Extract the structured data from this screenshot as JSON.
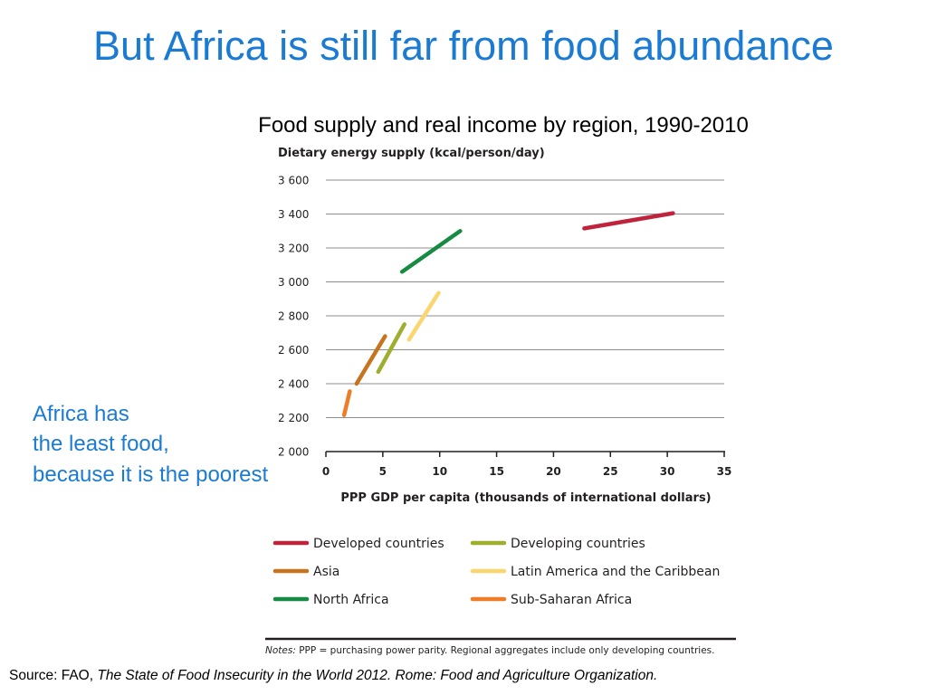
{
  "slide": {
    "title": "But Africa is still far from food abundance",
    "annotation": [
      "Africa has",
      "the least food,",
      "because it is the poorest"
    ],
    "source_prefix": "Source: FAO, ",
    "source_italic": "The State of Food Insecurity in the World 2012.  Rome: Food and Agriculture Organization."
  },
  "chart_data": {
    "type": "line",
    "title": "Food supply and real income by region, 1990-2010",
    "ylabel": "Dietary energy supply (kcal/person/day)",
    "xlabel": "PPP GDP per capita (thousands of international dollars)",
    "ylim": [
      2000,
      3600
    ],
    "xlim": [
      0,
      35
    ],
    "yticks": [
      2000,
      2200,
      2400,
      2600,
      2800,
      3000,
      3200,
      3400,
      3600
    ],
    "ytick_labels": [
      "2 000",
      "2 200",
      "2 400",
      "2 600",
      "2 800",
      "3 000",
      "3 200",
      "3 400",
      "3 600"
    ],
    "xticks": [
      0,
      5,
      10,
      15,
      20,
      25,
      30,
      35
    ],
    "xtick_labels": [
      "0",
      "5",
      "10",
      "15",
      "20",
      "25",
      "30",
      "35"
    ],
    "grid": "horizontal",
    "legend_position": "bottom",
    "series": [
      {
        "name": "Developed countries",
        "color": "#c0243c",
        "x": [
          22.7,
          30.5
        ],
        "y": [
          3315,
          3405
        ]
      },
      {
        "name": "Developing countries",
        "color": "#9fae2f",
        "x": [
          4.6,
          6.9
        ],
        "y": [
          2470,
          2750
        ]
      },
      {
        "name": "Asia",
        "color": "#c8741f",
        "x": [
          2.7,
          5.2
        ],
        "y": [
          2400,
          2680
        ]
      },
      {
        "name": "Latin America and the Caribbean",
        "color": "#fbd66e",
        "x": [
          7.3,
          9.9
        ],
        "y": [
          2660,
          2935
        ]
      },
      {
        "name": "North Africa",
        "color": "#178b43",
        "x": [
          6.7,
          11.8
        ],
        "y": [
          3060,
          3300
        ]
      },
      {
        "name": "Sub-Saharan Africa",
        "color": "#ee7d2a",
        "x": [
          1.6,
          2.1
        ],
        "y": [
          2215,
          2355
        ]
      }
    ],
    "notes_label": "Notes:",
    "notes_text": " PPP = purchasing power parity. Regional aggregates include only developing countries."
  }
}
